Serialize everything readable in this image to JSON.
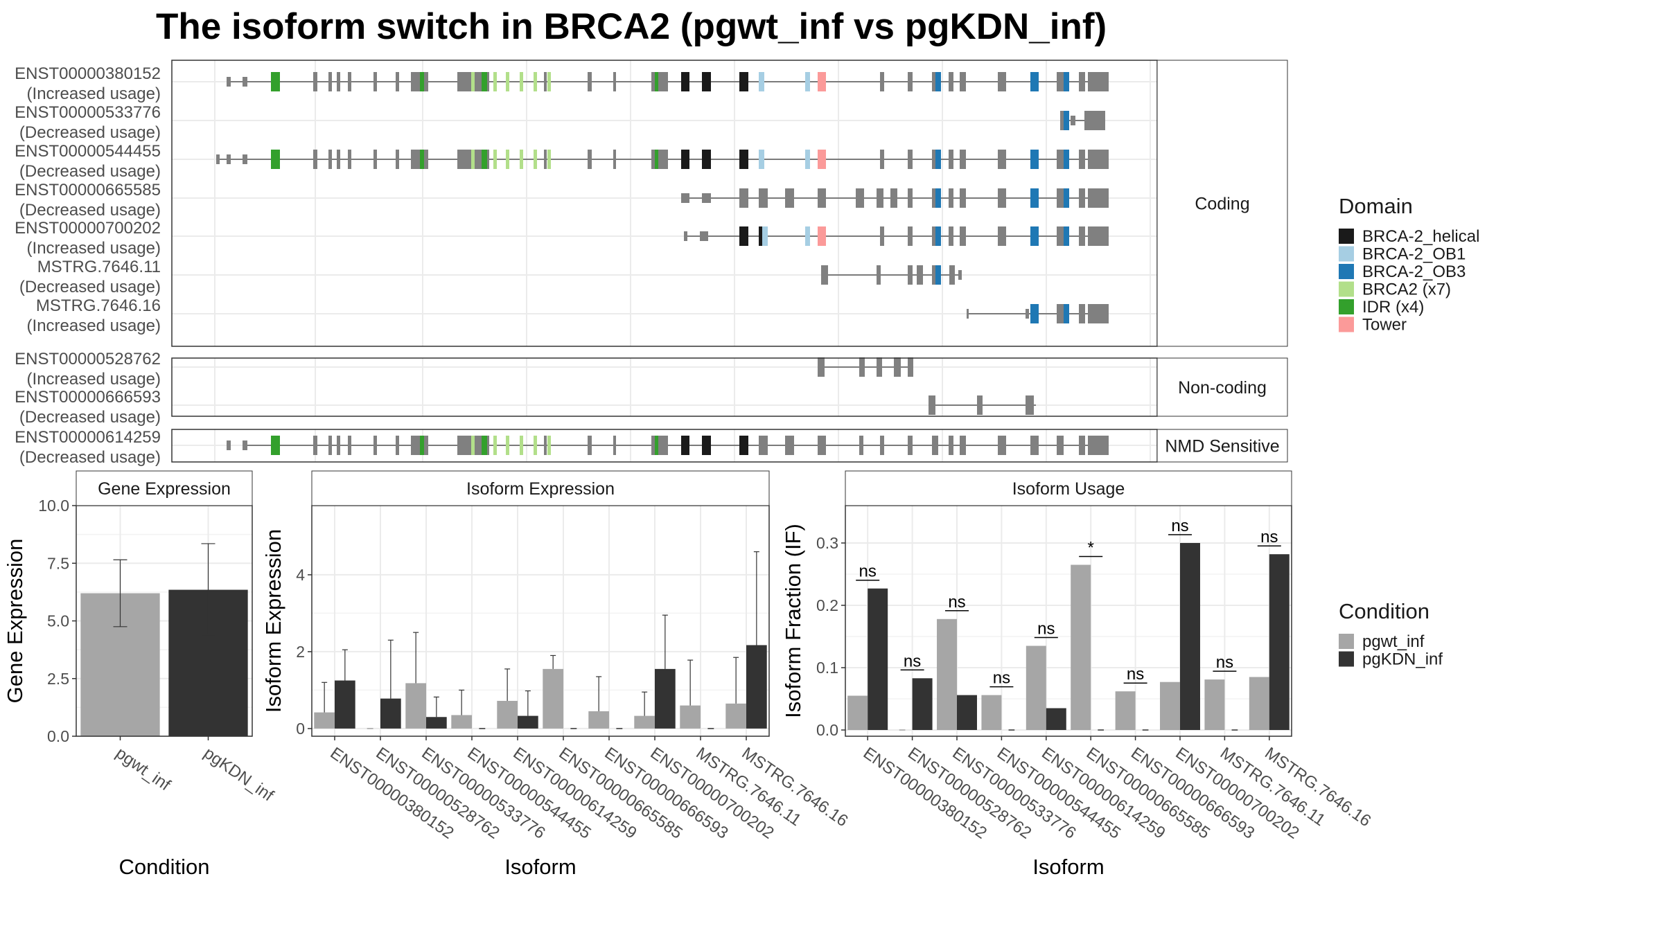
{
  "title": "The isoform switch in BRCA2 (pgwt_inf vs pgKDN_inf)",
  "colors": {
    "pgwt_inf": "#A6A6A6",
    "pgKDN_inf": "#333333",
    "exon": "#808080",
    "BRCA-2_helical": "#1a1a1a",
    "BRCA-2_OB1": "#a6cee3",
    "BRCA-2_OB3": "#1f78b4",
    "BRCA2 (x7)": "#b2df8a",
    "IDR (x4)": "#33a02c",
    "Tower": "#fb9a99"
  },
  "domain_legend": {
    "title": "Domain",
    "items": [
      {
        "label": "BRCA-2_helical",
        "color": "#1a1a1a"
      },
      {
        "label": "BRCA-2_OB1",
        "color": "#a6cee3"
      },
      {
        "label": "BRCA-2_OB3",
        "color": "#1f78b4"
      },
      {
        "label": "BRCA2 (x7)",
        "color": "#b2df8a"
      },
      {
        "label": "IDR (x4)",
        "color": "#33a02c"
      },
      {
        "label": "Tower",
        "color": "#fb9a99"
      }
    ]
  },
  "condition_legend": {
    "title": "Condition",
    "items": [
      {
        "label": "pgwt_inf",
        "color": "#A6A6A6"
      },
      {
        "label": "pgKDN_inf",
        "color": "#333333"
      }
    ]
  },
  "transcript_panels": [
    {
      "label": "Coding",
      "transcripts": [
        {
          "id": "ENST00000380152",
          "usage": "(Increased usage)"
        },
        {
          "id": "ENST00000533776",
          "usage": "(Decreased usage)"
        },
        {
          "id": "ENST00000544455",
          "usage": "(Decreased usage)"
        },
        {
          "id": "ENST00000665585",
          "usage": "(Decreased usage)"
        },
        {
          "id": "ENST00000700202",
          "usage": "(Increased usage)"
        },
        {
          "id": "MSTRG.7646.11",
          "usage": "(Decreased usage)"
        },
        {
          "id": "MSTRG.7646.16",
          "usage": "(Increased usage)"
        }
      ]
    },
    {
      "label": "Non-coding",
      "transcripts": [
        {
          "id": "ENST00000528762",
          "usage": "(Increased usage)"
        },
        {
          "id": "ENST00000666593",
          "usage": "(Decreased usage)"
        }
      ]
    },
    {
      "label": "NMD Sensitive",
      "transcripts": [
        {
          "id": "ENST00000614259",
          "usage": "(Decreased usage)"
        }
      ]
    }
  ],
  "chart_data": [
    {
      "type": "bar",
      "strip": "Gene Expression",
      "xlabel": "Condition",
      "ylabel": "Gene Expression",
      "categories": [
        "pgwt_inf",
        "pgKDN_inf"
      ],
      "values": [
        6.2,
        6.35
      ],
      "error_low": [
        4.75,
        4.4
      ],
      "error_high": [
        7.65,
        8.35
      ],
      "ylim": [
        0,
        10
      ],
      "yticks": [
        0.0,
        2.5,
        5.0,
        7.5,
        10.0
      ],
      "ytick_labels": [
        "0.0",
        "2.5",
        "5.0",
        "7.5",
        "10.0"
      ]
    },
    {
      "type": "bar",
      "strip": "Isoform Expression",
      "xlabel": "Isoform",
      "ylabel": "Isoform Expression",
      "categories": [
        "ENST00000380152",
        "ENST00000528762",
        "ENST00000533776",
        "ENST00000544455",
        "ENST00000614259",
        "ENST00000665585",
        "ENST00000666593",
        "ENST00000700202",
        "MSTRG.7646.11",
        "MSTRG.7646.16"
      ],
      "series": [
        {
          "name": "pgwt_inf",
          "values": [
            0.42,
            0.0,
            1.18,
            0.35,
            0.72,
            1.55,
            0.45,
            0.33,
            0.6,
            0.65
          ],
          "err": [
            1.2,
            null,
            2.5,
            1.0,
            1.55,
            1.9,
            1.35,
            0.95,
            1.78,
            1.85
          ]
        },
        {
          "name": "pgKDN_inf",
          "values": [
            1.25,
            0.78,
            0.3,
            0.0,
            0.33,
            0.0,
            0.0,
            1.55,
            0.0,
            2.17
          ],
          "err": [
            2.05,
            2.3,
            0.82,
            null,
            0.98,
            null,
            null,
            2.95,
            null,
            4.6
          ]
        }
      ],
      "ylim": [
        -0.2,
        5.8
      ],
      "yticks": [
        0,
        2,
        4
      ],
      "ytick_labels": [
        "0",
        "2",
        "4"
      ]
    },
    {
      "type": "bar",
      "strip": "Isoform Usage",
      "xlabel": "Isoform",
      "ylabel": "Isoform Fraction (IF)",
      "categories": [
        "ENST00000380152",
        "ENST00000528762",
        "ENST00000533776",
        "ENST00000544455",
        "ENST00000614259",
        "ENST00000665585",
        "ENST00000666593",
        "ENST00000700202",
        "MSTRG.7646.11",
        "MSTRG.7646.16"
      ],
      "series": [
        {
          "name": "pgwt_inf",
          "values": [
            0.055,
            0.0,
            0.178,
            0.056,
            0.135,
            0.265,
            0.062,
            0.077,
            0.081,
            0.085
          ]
        },
        {
          "name": "pgKDN_inf",
          "values": [
            0.227,
            0.083,
            0.056,
            0.0,
            0.035,
            0.0,
            0.0,
            0.3,
            0.0,
            0.282
          ]
        }
      ],
      "significance": [
        "ns",
        "ns",
        "ns",
        "ns",
        "ns",
        "*",
        "ns",
        "ns",
        "ns",
        "ns"
      ],
      "ylim": [
        -0.01,
        0.36
      ],
      "yticks": [
        0.0,
        0.1,
        0.2,
        0.3
      ],
      "ytick_labels": [
        "0.0",
        "0.1",
        "0.2",
        "0.3"
      ]
    }
  ]
}
